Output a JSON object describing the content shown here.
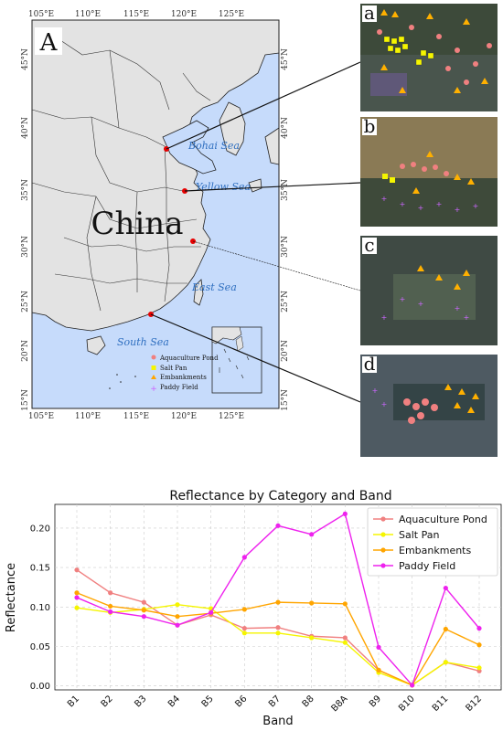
{
  "map": {
    "panel_label": "A",
    "country_label": "China",
    "seas": [
      "Bohai Sea",
      "Yellow Sea",
      "East Sea",
      "South Sea"
    ],
    "lon_ticks": [
      "105°E",
      "110°E",
      "115°E",
      "120°E",
      "125°E"
    ],
    "lat_ticks": [
      "45°N",
      "40°N",
      "35°N",
      "30°N",
      "25°N",
      "20°N",
      "15°N"
    ],
    "legend": [
      "Aquaculture Pond",
      "Salt Pan",
      "Embankments",
      "Paddy Field"
    ],
    "colors": {
      "land": "#e3e3e3",
      "sea": "#c6dbfb",
      "site_marker": "#e60000"
    }
  },
  "insets": [
    {
      "label": "a"
    },
    {
      "label": "b"
    },
    {
      "label": "c"
    },
    {
      "label": "d"
    }
  ],
  "chart_data": {
    "type": "line",
    "title": "Reflectance by Category and Band",
    "xlabel": "Band",
    "ylabel": "Reflectance",
    "categories": [
      "B1",
      "B2",
      "B3",
      "B4",
      "B5",
      "B6",
      "B7",
      "B8",
      "B8A",
      "B9",
      "B10",
      "B11",
      "B12"
    ],
    "ylim": [
      -0.005,
      0.23
    ],
    "yticks": [
      "0.00",
      "0.05",
      "0.10",
      "0.15",
      "0.20"
    ],
    "grid": true,
    "legend_position": "top-right",
    "series": [
      {
        "name": "Aquaculture Pond",
        "color": "#f08080",
        "values": [
          0.147,
          0.118,
          0.106,
          0.077,
          0.09,
          0.073,
          0.074,
          0.063,
          0.061,
          0.02,
          0.001,
          0.03,
          0.019
        ]
      },
      {
        "name": "Salt Pan",
        "color": "#f5f500",
        "values": [
          0.099,
          0.093,
          0.097,
          0.103,
          0.098,
          0.067,
          0.067,
          0.061,
          0.055,
          0.017,
          0.001,
          0.03,
          0.023
        ]
      },
      {
        "name": "Embankments",
        "color": "#ffa500",
        "values": [
          0.118,
          0.101,
          0.096,
          0.088,
          0.092,
          0.097,
          0.106,
          0.105,
          0.104,
          0.02,
          0.001,
          0.072,
          0.052
        ]
      },
      {
        "name": "Paddy Field",
        "color": "#ee22ee",
        "values": [
          0.112,
          0.094,
          0.088,
          0.077,
          0.093,
          0.163,
          0.203,
          0.192,
          0.218,
          0.049,
          0.001,
          0.124,
          0.073
        ]
      }
    ]
  }
}
